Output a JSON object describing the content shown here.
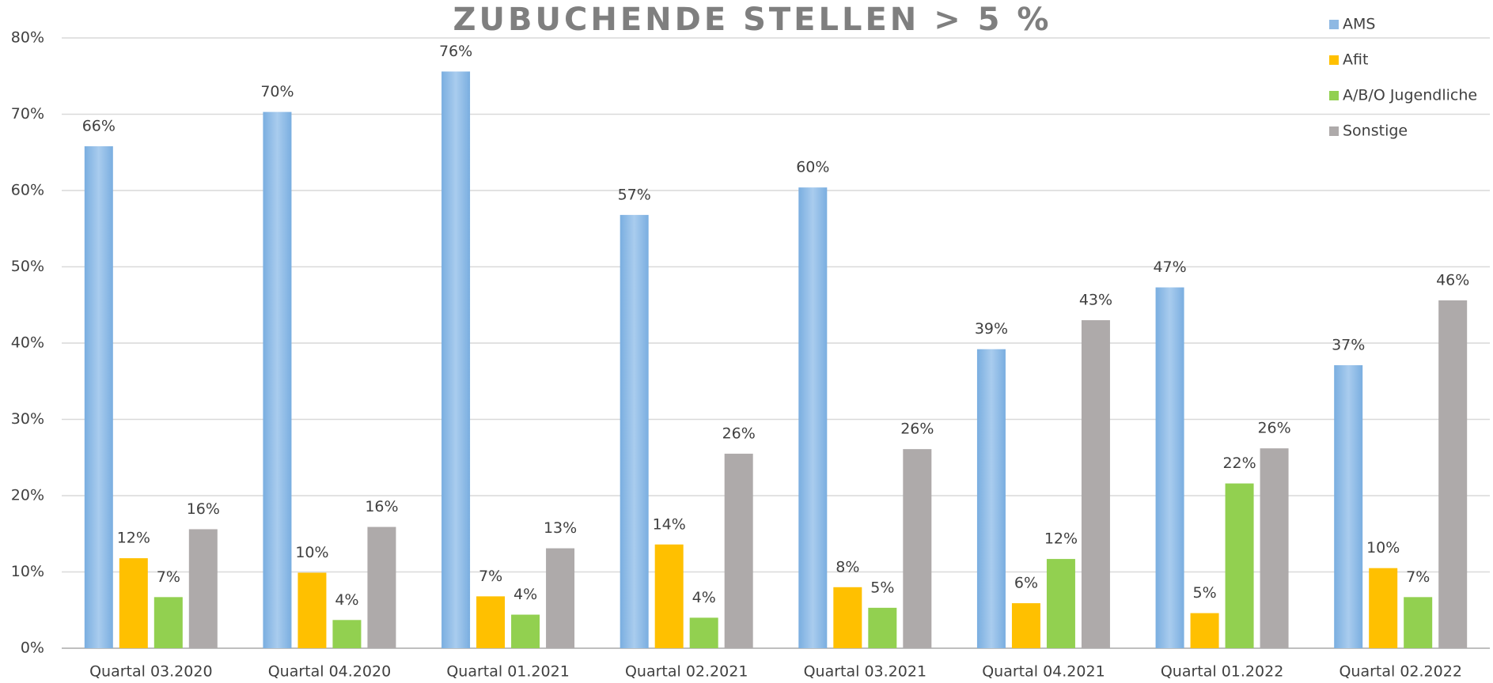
{
  "chart_data": {
    "type": "bar",
    "title": "ZUBUCHENDE STELLEN > 5 %",
    "categories": [
      "Quartal 03.2020",
      "Quartal 04.2020",
      "Quartal 01.2021",
      "Quartal 02.2021",
      "Quartal 03.2021",
      "Quartal 04.2021",
      "Quartal 01.2022",
      "Quartal 02.2022"
    ],
    "series": [
      {
        "name": "AMS",
        "color": "#8fb9e3",
        "values": [
          65.8,
          70.3,
          75.6,
          56.8,
          60.4,
          39.2,
          47.3,
          37.1
        ],
        "value_labels": [
          "66%",
          "70%",
          "76%",
          "57%",
          "60%",
          "39%",
          "47%",
          "37%"
        ]
      },
      {
        "name": "Afit",
        "color": "#ffc000",
        "values": [
          11.8,
          9.9,
          6.8,
          13.6,
          8.0,
          5.9,
          4.6,
          10.5
        ],
        "value_labels": [
          "12%",
          "10%",
          "7%",
          "14%",
          "8%",
          "6%",
          "5%",
          "10%"
        ]
      },
      {
        "name": "A/B/O Jugendliche",
        "color": "#92d050",
        "values": [
          6.7,
          3.7,
          4.4,
          4.0,
          5.3,
          11.7,
          21.6,
          6.7
        ],
        "value_labels": [
          "7%",
          "4%",
          "4%",
          "4%",
          "5%",
          "12%",
          "22%",
          "7%"
        ]
      },
      {
        "name": "Sonstige",
        "color": "#aeaaaa",
        "values": [
          15.6,
          15.9,
          13.1,
          25.5,
          26.1,
          43.0,
          26.2,
          45.6
        ],
        "value_labels": [
          "16%",
          "16%",
          "13%",
          "26%",
          "26%",
          "43%",
          "26%",
          "46%"
        ]
      }
    ],
    "ylim": [
      0,
      80
    ],
    "yticks": [
      {
        "value": 0,
        "label": "0%"
      },
      {
        "value": 10,
        "label": "10%"
      },
      {
        "value": 20,
        "label": "20%"
      },
      {
        "value": 30,
        "label": "30%"
      },
      {
        "value": 40,
        "label": "40%"
      },
      {
        "value": 50,
        "label": "50%"
      },
      {
        "value": 60,
        "label": "60%"
      },
      {
        "value": 70,
        "label": "70%"
      },
      {
        "value": 80,
        "label": "80%"
      }
    ],
    "grid": true,
    "legend": "top-right"
  }
}
